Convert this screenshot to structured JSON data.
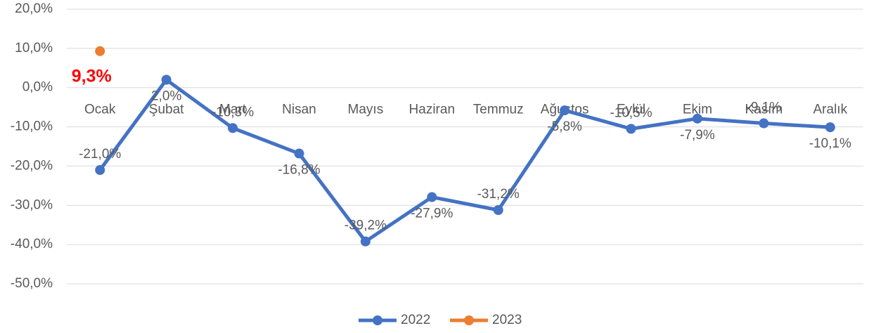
{
  "chart_data": {
    "type": "line",
    "categories": [
      "Ocak",
      "Şubat",
      "Mart",
      "Nisan",
      "Mayıs",
      "Haziran",
      "Temmuz",
      "Ağustos",
      "Eylül",
      "Ekim",
      "Kasım",
      "Aralık"
    ],
    "series": [
      {
        "name": "2022",
        "color": "#4472c4",
        "values": [
          -21.0,
          2.0,
          -10.3,
          -16.8,
          -39.2,
          -27.9,
          -31.2,
          -5.8,
          -10.5,
          -7.9,
          -9.1,
          -10.1
        ],
        "value_labels": [
          "-21,0%",
          "2,0%",
          "-10,3%",
          "-16,8%",
          "-39,2%",
          "-27,9%",
          "-31,2%",
          "-5,8%",
          "-10,5%",
          "-7,9%",
          "-9,1%",
          "-10,1%"
        ]
      },
      {
        "name": "2023",
        "color": "#ed7d31",
        "value_label_color": "#ff0000",
        "values": [
          9.3,
          null,
          null,
          null,
          null,
          null,
          null,
          null,
          null,
          null,
          null,
          null
        ],
        "value_labels": [
          "9,3%",
          null,
          null,
          null,
          null,
          null,
          null,
          null,
          null,
          null,
          null,
          null
        ]
      }
    ],
    "ylim": [
      -50,
      20
    ],
    "yticks": [
      {
        "value": -50,
        "label": "-50,0%"
      },
      {
        "value": -40,
        "label": "-40,0%"
      },
      {
        "value": -30,
        "label": "-30,0%"
      },
      {
        "value": -20,
        "label": "-20,0%"
      },
      {
        "value": -10,
        "label": "-10,0%"
      },
      {
        "value": 0,
        "label": "0,0%"
      },
      {
        "value": 10,
        "label": "10,0%"
      },
      {
        "value": 20,
        "label": "20,0%"
      }
    ],
    "grid": true,
    "legend": "bottom"
  }
}
